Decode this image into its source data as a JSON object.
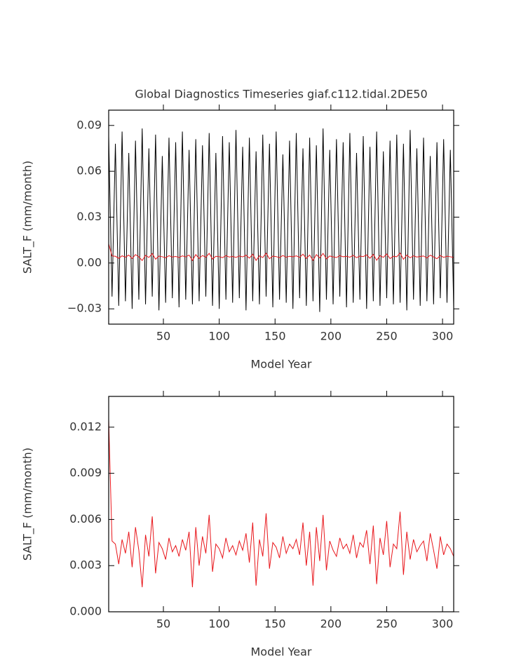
{
  "chart_data": [
    {
      "type": "line",
      "title": "Global Diagnostics Timeseries giaf.c112.tidal.2DE50",
      "xlabel": "Model Year",
      "ylabel": "SALT_F (mm/month)",
      "xlim": [
        1,
        310
      ],
      "xticks": [
        50,
        100,
        150,
        200,
        250,
        300
      ],
      "ylim": [
        -0.04,
        0.1
      ],
      "yticks": [
        {
          "value": -0.03,
          "label": "−0.03"
        },
        {
          "value": 0,
          "label": "0.00"
        },
        {
          "value": 0.03,
          "label": "0.03"
        },
        {
          "value": 0.06,
          "label": "0.06"
        },
        {
          "value": 0.09,
          "label": "0.09"
        }
      ],
      "x": [
        1,
        4,
        7,
        10,
        13,
        16,
        19,
        22,
        25,
        28,
        31,
        34,
        37,
        40,
        43,
        46,
        49,
        52,
        55,
        58,
        61,
        64,
        67,
        70,
        73,
        76,
        79,
        82,
        85,
        88,
        91,
        94,
        97,
        100,
        103,
        106,
        109,
        112,
        115,
        118,
        121,
        124,
        127,
        130,
        133,
        136,
        139,
        142,
        145,
        148,
        151,
        154,
        157,
        160,
        163,
        166,
        169,
        172,
        175,
        178,
        181,
        184,
        187,
        190,
        193,
        196,
        199,
        202,
        205,
        208,
        211,
        214,
        217,
        220,
        223,
        226,
        229,
        232,
        235,
        238,
        241,
        244,
        247,
        250,
        253,
        256,
        259,
        262,
        265,
        268,
        271,
        274,
        277,
        280,
        283,
        286,
        289,
        292,
        295,
        298,
        301,
        304,
        307,
        310
      ],
      "series": [
        {
          "color": "#000000",
          "values": [
            0.083,
            -0.022,
            0.078,
            -0.028,
            0.086,
            -0.025,
            0.072,
            -0.03,
            0.08,
            -0.024,
            0.088,
            -0.027,
            0.075,
            -0.022,
            0.084,
            -0.031,
            0.07,
            -0.026,
            0.082,
            -0.023,
            0.079,
            -0.029,
            0.086,
            -0.024,
            0.074,
            -0.027,
            0.081,
            -0.025,
            0.077,
            -0.022,
            0.085,
            -0.028,
            0.072,
            -0.03,
            0.083,
            -0.024,
            0.079,
            -0.026,
            0.087,
            -0.023,
            0.076,
            -0.031,
            0.082,
            -0.025,
            0.073,
            -0.027,
            0.084,
            -0.022,
            0.078,
            -0.029,
            0.086,
            -0.024,
            0.071,
            -0.026,
            0.08,
            -0.03,
            0.085,
            -0.023,
            0.075,
            -0.028,
            0.082,
            -0.025,
            0.077,
            -0.032,
            0.088,
            -0.024,
            0.074,
            -0.027,
            0.081,
            -0.022,
            0.079,
            -0.029,
            0.085,
            -0.026,
            0.072,
            -0.024,
            0.083,
            -0.03,
            0.076,
            -0.025,
            0.086,
            -0.028,
            0.073,
            -0.023,
            0.08,
            -0.027,
            0.084,
            -0.026,
            0.078,
            -0.031,
            0.087,
            -0.024,
            0.075,
            -0.028,
            0.082,
            -0.025,
            0.07,
            -0.027,
            0.079,
            -0.023,
            0.081,
            -0.026,
            0.074,
            -0.029
          ]
        },
        {
          "color": "#e8161b",
          "values": [
            0.0125,
            0.0046,
            0.0044,
            0.0031,
            0.0047,
            0.0038,
            0.0052,
            0.0029,
            0.0055,
            0.004,
            0.0016,
            0.005,
            0.0036,
            0.0062,
            0.0025,
            0.0045,
            0.0041,
            0.0034,
            0.0048,
            0.0039,
            0.0043,
            0.0036,
            0.0047,
            0.004,
            0.0052,
            0.0016,
            0.0055,
            0.003,
            0.0049,
            0.0038,
            0.0063,
            0.0026,
            0.0044,
            0.0041,
            0.0035,
            0.0048,
            0.0039,
            0.0043,
            0.0037,
            0.0046,
            0.004,
            0.0051,
            0.0032,
            0.0058,
            0.0017,
            0.0047,
            0.0036,
            0.0064,
            0.0028,
            0.0045,
            0.0042,
            0.0035,
            0.0049,
            0.0038,
            0.0044,
            0.0041,
            0.0047,
            0.0037,
            0.0058,
            0.003,
            0.0052,
            0.0017,
            0.0055,
            0.0033,
            0.0063,
            0.0027,
            0.0046,
            0.004,
            0.0036,
            0.0048,
            0.0041,
            0.0044,
            0.0038,
            0.005,
            0.0035,
            0.0045,
            0.0042,
            0.0053,
            0.0031,
            0.0056,
            0.0018,
            0.0048,
            0.0037,
            0.0059,
            0.0029,
            0.0044,
            0.0041,
            0.0065,
            0.0024,
            0.0052,
            0.0034,
            0.0047,
            0.0039,
            0.0043,
            0.0046,
            0.0033,
            0.0051,
            0.004,
            0.0028,
            0.0049,
            0.0037,
            0.0044,
            0.0041,
            0.0036
          ]
        }
      ]
    },
    {
      "type": "line",
      "xlabel": "Model Year",
      "ylabel": "SALT_F (mm/month)",
      "xlim": [
        1,
        310
      ],
      "xticks": [
        50,
        100,
        150,
        200,
        250,
        300
      ],
      "ylim": [
        0,
        0.014
      ],
      "yticks": [
        {
          "value": 0,
          "label": "0.000"
        },
        {
          "value": 0.003,
          "label": "0.003"
        },
        {
          "value": 0.006,
          "label": "0.006"
        },
        {
          "value": 0.009,
          "label": "0.009"
        },
        {
          "value": 0.012,
          "label": "0.012"
        }
      ],
      "x": [
        1,
        4,
        7,
        10,
        13,
        16,
        19,
        22,
        25,
        28,
        31,
        34,
        37,
        40,
        43,
        46,
        49,
        52,
        55,
        58,
        61,
        64,
        67,
        70,
        73,
        76,
        79,
        82,
        85,
        88,
        91,
        94,
        97,
        100,
        103,
        106,
        109,
        112,
        115,
        118,
        121,
        124,
        127,
        130,
        133,
        136,
        139,
        142,
        145,
        148,
        151,
        154,
        157,
        160,
        163,
        166,
        169,
        172,
        175,
        178,
        181,
        184,
        187,
        190,
        193,
        196,
        199,
        202,
        205,
        208,
        211,
        214,
        217,
        220,
        223,
        226,
        229,
        232,
        235,
        238,
        241,
        244,
        247,
        250,
        253,
        256,
        259,
        262,
        265,
        268,
        271,
        274,
        277,
        280,
        283,
        286,
        289,
        292,
        295,
        298,
        301,
        304,
        307,
        310
      ],
      "series": [
        {
          "color": "#e8161b",
          "values": [
            0.0125,
            0.0046,
            0.0044,
            0.0031,
            0.0047,
            0.0038,
            0.0052,
            0.0029,
            0.0055,
            0.004,
            0.0016,
            0.005,
            0.0036,
            0.0062,
            0.0025,
            0.0045,
            0.0041,
            0.0034,
            0.0048,
            0.0039,
            0.0043,
            0.0036,
            0.0047,
            0.004,
            0.0052,
            0.0016,
            0.0055,
            0.003,
            0.0049,
            0.0038,
            0.0063,
            0.0026,
            0.0044,
            0.0041,
            0.0035,
            0.0048,
            0.0039,
            0.0043,
            0.0037,
            0.0046,
            0.004,
            0.0051,
            0.0032,
            0.0058,
            0.0017,
            0.0047,
            0.0036,
            0.0064,
            0.0028,
            0.0045,
            0.0042,
            0.0035,
            0.0049,
            0.0038,
            0.0044,
            0.0041,
            0.0047,
            0.0037,
            0.0058,
            0.003,
            0.0052,
            0.0017,
            0.0055,
            0.0033,
            0.0063,
            0.0027,
            0.0046,
            0.004,
            0.0036,
            0.0048,
            0.0041,
            0.0044,
            0.0038,
            0.005,
            0.0035,
            0.0045,
            0.0042,
            0.0053,
            0.0031,
            0.0056,
            0.0018,
            0.0048,
            0.0037,
            0.0059,
            0.0029,
            0.0044,
            0.0041,
            0.0065,
            0.0024,
            0.0052,
            0.0034,
            0.0047,
            0.0039,
            0.0043,
            0.0046,
            0.0033,
            0.0051,
            0.004,
            0.0028,
            0.0049,
            0.0037,
            0.0044,
            0.0041,
            0.0036
          ]
        }
      ]
    }
  ]
}
